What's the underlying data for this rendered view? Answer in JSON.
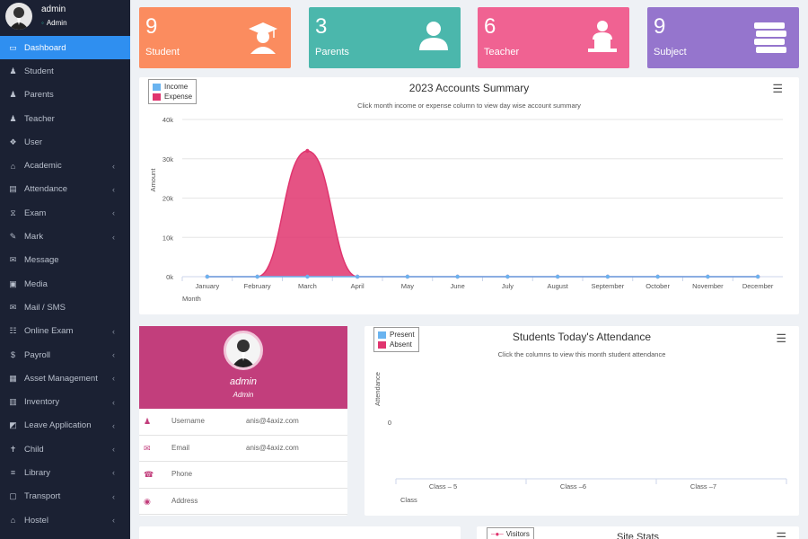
{
  "user": {
    "name": "admin",
    "role": "Admin"
  },
  "sidebar": {
    "items": [
      {
        "label": "Dashboard",
        "icon": "dashboard-icon",
        "active": true,
        "has_submenu": false
      },
      {
        "label": "Student",
        "icon": "student-icon",
        "has_submenu": false
      },
      {
        "label": "Parents",
        "icon": "parents-icon",
        "has_submenu": false
      },
      {
        "label": "Teacher",
        "icon": "teacher-icon",
        "has_submenu": false
      },
      {
        "label": "User",
        "icon": "users-icon",
        "has_submenu": false
      },
      {
        "label": "Academic",
        "icon": "academic-icon",
        "has_submenu": true
      },
      {
        "label": "Attendance",
        "icon": "attendance-icon",
        "has_submenu": true
      },
      {
        "label": "Exam",
        "icon": "exam-icon",
        "has_submenu": true
      },
      {
        "label": "Mark",
        "icon": "mark-icon",
        "has_submenu": true
      },
      {
        "label": "Message",
        "icon": "message-icon",
        "has_submenu": false
      },
      {
        "label": "Media",
        "icon": "media-icon",
        "has_submenu": false
      },
      {
        "label": "Mail / SMS",
        "icon": "mail-icon",
        "has_submenu": false
      },
      {
        "label": "Online Exam",
        "icon": "online-exam-icon",
        "has_submenu": true
      },
      {
        "label": "Payroll",
        "icon": "dollar-icon",
        "has_submenu": true
      },
      {
        "label": "Asset Management",
        "icon": "asset-icon",
        "has_submenu": true
      },
      {
        "label": "Inventory",
        "icon": "inventory-icon",
        "has_submenu": true
      },
      {
        "label": "Leave Application",
        "icon": "leave-icon",
        "has_submenu": true
      },
      {
        "label": "Child",
        "icon": "child-icon",
        "has_submenu": true
      },
      {
        "label": "Library",
        "icon": "library-icon",
        "has_submenu": true
      },
      {
        "label": "Transport",
        "icon": "transport-icon",
        "has_submenu": true
      },
      {
        "label": "Hostel",
        "icon": "hostel-icon",
        "has_submenu": true
      }
    ]
  },
  "cards": [
    {
      "count": "9",
      "label": "Student",
      "color": "#fb8c5f",
      "icon": "graduate-icon"
    },
    {
      "count": "3",
      "label": "Parents",
      "color": "#4bb7ac",
      "icon": "person-icon"
    },
    {
      "count": "6",
      "label": "Teacher",
      "color": "#f06292",
      "icon": "teacher-laptop-icon"
    },
    {
      "count": "9",
      "label": "Subject",
      "color": "#9575cd",
      "icon": "books-icon"
    }
  ],
  "accounts": {
    "title": "2023 Accounts Summary",
    "subtitle": "Click month income or expense column to view day wise account summary",
    "legend": [
      {
        "name": "Income",
        "color": "#6ab4f0"
      },
      {
        "name": "Expense",
        "color": "#e0356f"
      }
    ]
  },
  "chart_data": [
    {
      "type": "area",
      "title": "2023 Accounts Summary",
      "ylabel": "Amount",
      "xlabel": "Month",
      "ylim": [
        0,
        40000
      ],
      "y_ticks": [
        "0k",
        "10k",
        "20k",
        "30k",
        "40k"
      ],
      "categories": [
        "January",
        "February",
        "March",
        "April",
        "May",
        "June",
        "July",
        "August",
        "September",
        "October",
        "November",
        "December"
      ],
      "series": [
        {
          "name": "Income",
          "color": "#6ab4f0",
          "values": [
            0,
            0,
            0,
            0,
            0,
            0,
            0,
            0,
            0,
            0,
            0,
            0
          ]
        },
        {
          "name": "Expense",
          "color": "#e0356f",
          "values": [
            0,
            0,
            32000,
            0,
            0,
            0,
            0,
            0,
            0,
            0,
            0,
            0
          ]
        }
      ]
    },
    {
      "type": "bar",
      "title": "Students Today's Attendance",
      "ylabel": "Attendance",
      "xlabel": "Class",
      "y_ticks": [
        "0"
      ],
      "categories": [
        "Class – 5",
        "Class –6",
        "Class –7"
      ],
      "series": [
        {
          "name": "Present",
          "color": "#6ab4f0",
          "values": [
            0,
            0,
            0
          ]
        },
        {
          "name": "Absent",
          "color": "#e0356f",
          "values": [
            0,
            0,
            0
          ]
        }
      ]
    }
  ],
  "attendance": {
    "title": "Students Today's Attendance",
    "subtitle": "Click the columns to view this month student attendance",
    "legend": [
      {
        "name": "Present",
        "color": "#6ab4f0"
      },
      {
        "name": "Absent",
        "color": "#e0356f"
      }
    ]
  },
  "profile": {
    "name": "admin",
    "role": "Admin",
    "rows": [
      {
        "key": "Username",
        "value": "anis@4axiz.com",
        "icon": "user-icon"
      },
      {
        "key": "Email",
        "value": "anis@4axiz.com",
        "icon": "envelope-icon"
      },
      {
        "key": "Phone",
        "value": "",
        "icon": "phone-icon"
      },
      {
        "key": "Address",
        "value": "",
        "icon": "location-icon"
      }
    ]
  },
  "site_stats": {
    "title": "Site Stats",
    "legend": [
      {
        "name": "Visitors",
        "color": "#e0356f"
      }
    ]
  }
}
